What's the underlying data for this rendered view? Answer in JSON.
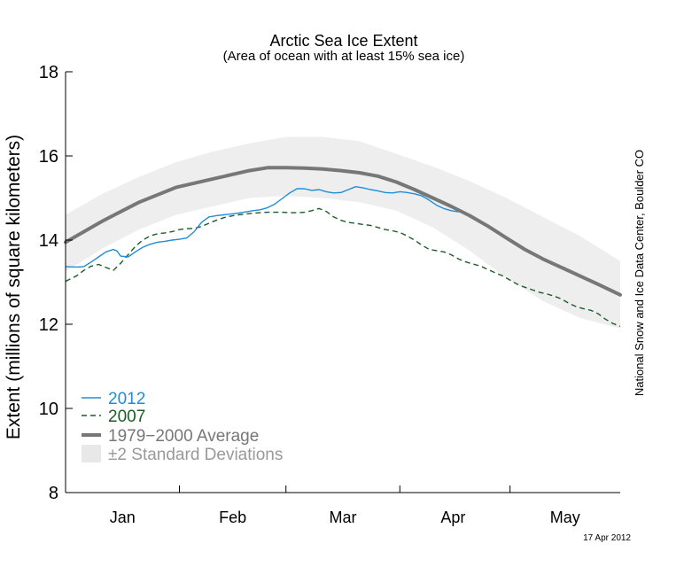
{
  "chart_data": {
    "type": "line",
    "title": "Arctic Sea Ice Extent",
    "subtitle": "(Area of ocean with at least 15% sea ice)",
    "ylabel": "Extent (millions of square kilometers)",
    "xlabel": "",
    "ylim": [
      8,
      18
    ],
    "yticks": [
      8,
      10,
      12,
      14,
      16,
      18
    ],
    "xlim": [
      0,
      151
    ],
    "month_ticks": [
      31,
      60,
      91,
      121
    ],
    "month_labels": [
      {
        "label": "Jan",
        "day": 15.5
      },
      {
        "label": "Feb",
        "day": 45.5
      },
      {
        "label": "Mar",
        "day": 75.5
      },
      {
        "label": "Apr",
        "day": 105.5
      },
      {
        "label": "May",
        "day": 136
      }
    ],
    "series": [
      {
        "name": "1979−2000 Average",
        "color": "#777777",
        "style": "solid-thick",
        "x": [
          0,
          10,
          20,
          30,
          40,
          50,
          55,
          60,
          65,
          70,
          75,
          80,
          85,
          90,
          95,
          100,
          105,
          110,
          115,
          120,
          125,
          130,
          135,
          140,
          145,
          151
        ],
        "y": [
          13.95,
          14.45,
          14.9,
          15.25,
          15.45,
          15.65,
          15.72,
          15.72,
          15.71,
          15.69,
          15.65,
          15.6,
          15.52,
          15.38,
          15.2,
          15.0,
          14.8,
          14.58,
          14.33,
          14.05,
          13.78,
          13.55,
          13.35,
          13.15,
          12.95,
          12.7
        ]
      },
      {
        "name": "±2 Standard Deviations",
        "color": "#eeeeee",
        "style": "band",
        "x": [
          0,
          10,
          20,
          30,
          40,
          50,
          60,
          70,
          80,
          90,
          100,
          110,
          120,
          130,
          140,
          151
        ],
        "upper": [
          14.6,
          15.1,
          15.5,
          15.85,
          16.1,
          16.3,
          16.45,
          16.45,
          16.35,
          16.05,
          15.75,
          15.4,
          15.0,
          14.55,
          14.1,
          13.5
        ],
        "lower": [
          13.25,
          13.8,
          14.25,
          14.6,
          14.8,
          15.0,
          15.05,
          15.0,
          14.9,
          14.7,
          14.3,
          13.75,
          13.1,
          12.55,
          12.15,
          11.9
        ]
      },
      {
        "name": "2012",
        "color": "#1f8dd6",
        "style": "solid",
        "x": [
          0,
          3,
          5,
          7,
          9,
          11,
          13,
          14,
          15,
          17,
          19,
          21,
          23,
          25,
          27,
          29,
          31,
          33,
          35,
          37,
          39,
          41,
          43,
          45,
          47,
          49,
          51,
          53,
          55,
          57,
          59,
          61,
          63,
          65,
          67,
          69,
          71,
          73,
          75,
          77,
          79,
          81,
          83,
          85,
          87,
          89,
          91,
          93,
          95,
          97,
          99,
          101,
          103,
          105,
          107
        ],
        "y": [
          13.37,
          13.36,
          13.37,
          13.48,
          13.6,
          13.72,
          13.78,
          13.74,
          13.62,
          13.6,
          13.72,
          13.83,
          13.9,
          13.95,
          13.97,
          14.0,
          14.02,
          14.05,
          14.2,
          14.42,
          14.55,
          14.58,
          14.6,
          14.62,
          14.64,
          14.67,
          14.7,
          14.72,
          14.77,
          14.86,
          14.99,
          15.12,
          15.22,
          15.22,
          15.18,
          15.2,
          15.15,
          15.12,
          15.13,
          15.2,
          15.27,
          15.24,
          15.2,
          15.17,
          15.13,
          15.12,
          15.15,
          15.13,
          15.1,
          15.05,
          14.95,
          14.83,
          14.75,
          14.7,
          14.67
        ]
      },
      {
        "name": "2007",
        "color": "#1e5b28",
        "style": "dashed",
        "x": [
          0,
          3,
          5,
          7,
          9,
          11,
          13,
          15,
          17,
          19,
          21,
          23,
          25,
          27,
          29,
          31,
          33,
          35,
          37,
          39,
          41,
          43,
          45,
          47,
          49,
          51,
          53,
          55,
          57,
          59,
          61,
          63,
          65,
          67,
          69,
          71,
          73,
          75,
          77,
          79,
          81,
          83,
          85,
          87,
          89,
          91,
          93,
          95,
          97,
          99,
          101,
          103,
          105,
          107,
          109,
          111,
          113,
          115,
          117,
          119,
          121,
          123,
          125,
          127,
          129,
          131,
          133,
          135,
          137,
          139,
          141,
          143,
          145,
          147,
          149,
          151
        ],
        "y": [
          13.02,
          13.15,
          13.28,
          13.38,
          13.42,
          13.35,
          13.28,
          13.45,
          13.65,
          13.85,
          14.0,
          14.1,
          14.15,
          14.17,
          14.2,
          14.25,
          14.27,
          14.28,
          14.32,
          14.4,
          14.47,
          14.53,
          14.57,
          14.6,
          14.62,
          14.64,
          14.65,
          14.66,
          14.66,
          14.66,
          14.65,
          14.65,
          14.66,
          14.7,
          14.75,
          14.68,
          14.55,
          14.47,
          14.42,
          14.4,
          14.37,
          14.35,
          14.3,
          14.25,
          14.22,
          14.18,
          14.1,
          14.0,
          13.88,
          13.78,
          13.75,
          13.72,
          13.65,
          13.55,
          13.48,
          13.43,
          13.38,
          13.3,
          13.22,
          13.15,
          13.05,
          12.95,
          12.88,
          12.82,
          12.76,
          12.72,
          12.67,
          12.6,
          12.5,
          12.42,
          12.37,
          12.33,
          12.25,
          12.12,
          12.02,
          11.95
        ]
      }
    ],
    "legend": {
      "placement": "bottom-left",
      "items": [
        {
          "label": "2012",
          "series": "2012"
        },
        {
          "label": "2007",
          "series": "2007"
        },
        {
          "label": "1979−2000 Average",
          "series": "1979−2000 Average"
        },
        {
          "label": "±2 Standard Deviations",
          "series": "±2 Standard Deviations"
        }
      ]
    },
    "annotations": {
      "credit": "National Snow and Ice Data Center, Boulder CO",
      "date": "17 Apr 2012"
    },
    "grid": false
  }
}
